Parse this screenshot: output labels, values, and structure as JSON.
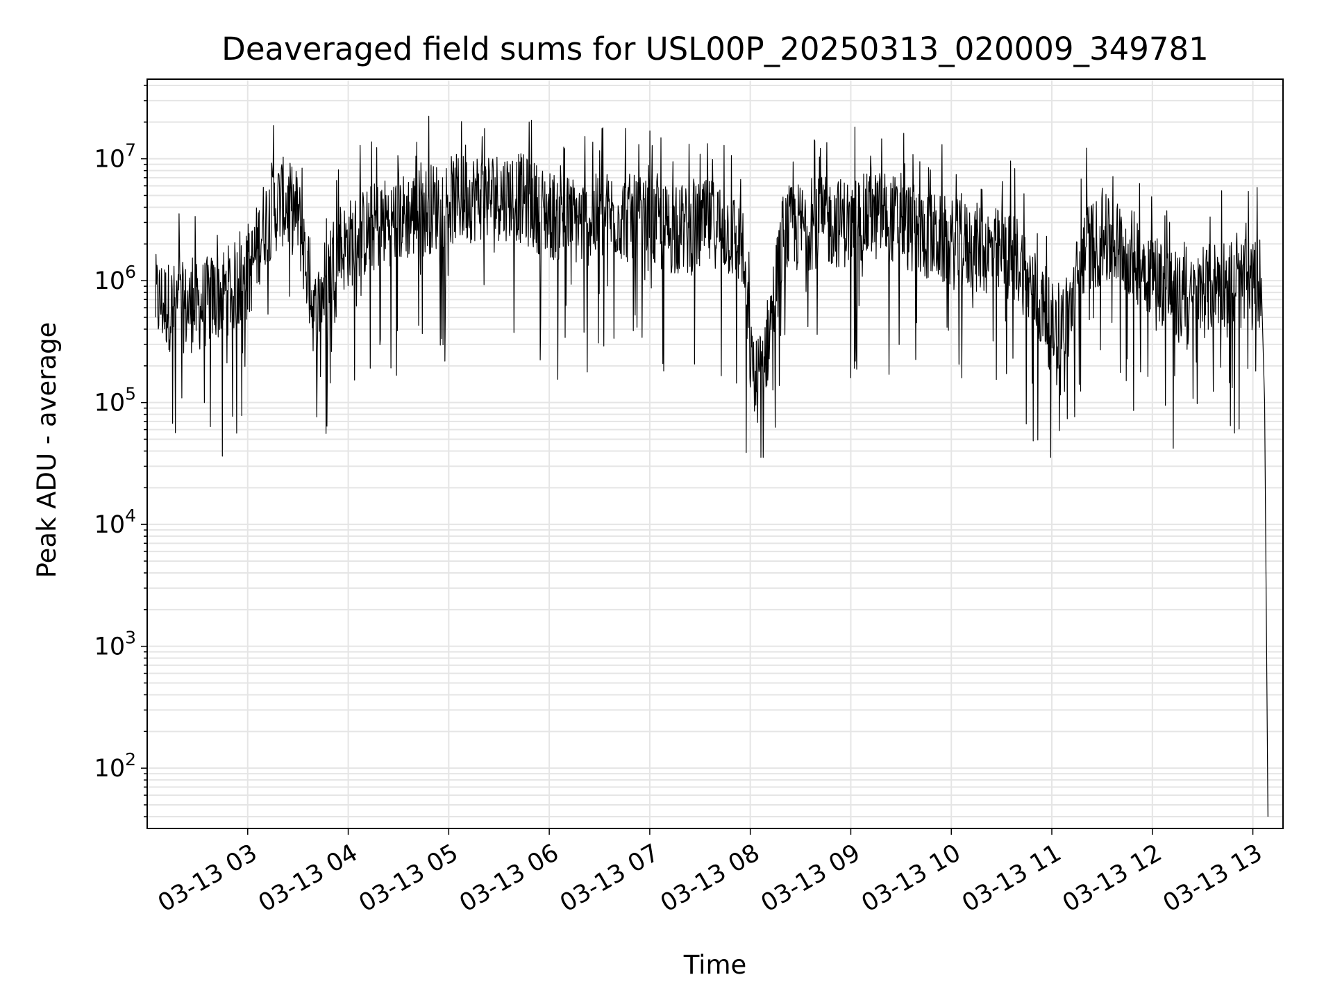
{
  "chart_data": {
    "type": "line",
    "title": "Deaveraged field sums for USL00P_20250313_020009_349781",
    "xlabel": "Time",
    "ylabel": "Peak ADU - average",
    "y_scale": "log",
    "ylim": [
      32,
      45000000
    ],
    "xlim": [
      "2025-03-13 02:00",
      "2025-03-13 13:18"
    ],
    "x_ticks": [
      "03-13 03",
      "03-13 04",
      "03-13 05",
      "03-13 06",
      "03-13 07",
      "03-13 08",
      "03-13 09",
      "03-13 10",
      "03-13 11",
      "03-13 12",
      "03-13 13"
    ],
    "y_ticks": [
      {
        "base": "10",
        "exp": "2",
        "value": 100
      },
      {
        "base": "10",
        "exp": "3",
        "value": 1000
      },
      {
        "base": "10",
        "exp": "4",
        "value": 10000
      },
      {
        "base": "10",
        "exp": "5",
        "value": 100000
      },
      {
        "base": "10",
        "exp": "6",
        "value": 1000000
      },
      {
        "base": "10",
        "exp": "7",
        "value": 10000000
      }
    ],
    "grid": true,
    "line_color": "#000000",
    "grid_color": "#e5e5e5",
    "series": [
      {
        "x": [
          "2025-03-13 02:05",
          "2025-03-13 02:15",
          "2025-03-13 02:30",
          "2025-03-13 02:45",
          "2025-03-13 03:00",
          "2025-03-13 03:10",
          "2025-03-13 03:20",
          "2025-03-13 03:30",
          "2025-03-13 03:40",
          "2025-03-13 03:50",
          "2025-03-13 04:00",
          "2025-03-13 04:20",
          "2025-03-13 04:40",
          "2025-03-13 05:00",
          "2025-03-13 05:20",
          "2025-03-13 05:40",
          "2025-03-13 06:00",
          "2025-03-13 06:20",
          "2025-03-13 06:40",
          "2025-03-13 07:00",
          "2025-03-13 07:20",
          "2025-03-13 07:40",
          "2025-03-13 07:55",
          "2025-03-13 08:02",
          "2025-03-13 08:10",
          "2025-03-13 08:20",
          "2025-03-13 08:40",
          "2025-03-13 09:00",
          "2025-03-13 09:20",
          "2025-03-13 09:40",
          "2025-03-13 10:00",
          "2025-03-13 10:20",
          "2025-03-13 10:40",
          "2025-03-13 11:00",
          "2025-03-13 11:10",
          "2025-03-13 11:20",
          "2025-03-13 11:40",
          "2025-03-13 12:00",
          "2025-03-13 12:20",
          "2025-03-13 12:40",
          "2025-03-13 13:00",
          "2025-03-13 13:05",
          "2025-03-13 13:07",
          "2025-03-13 13:09"
        ],
        "y": [
          700000,
          600000,
          600000,
          800000,
          1000000,
          3000000,
          4500000,
          3500000,
          500000,
          1500000,
          2000000,
          3000000,
          3500000,
          4500000,
          5000000,
          5000000,
          3500000,
          3000000,
          3500000,
          2800000,
          2500000,
          3000000,
          2000000,
          120000,
          300000,
          2500000,
          3000000,
          3000000,
          3500000,
          2500000,
          2000000,
          1800000,
          1500000,
          400000,
          500000,
          2000000,
          2000000,
          1200000,
          600000,
          1000000,
          900000,
          1000000,
          100000,
          40
        ]
      }
    ]
  }
}
